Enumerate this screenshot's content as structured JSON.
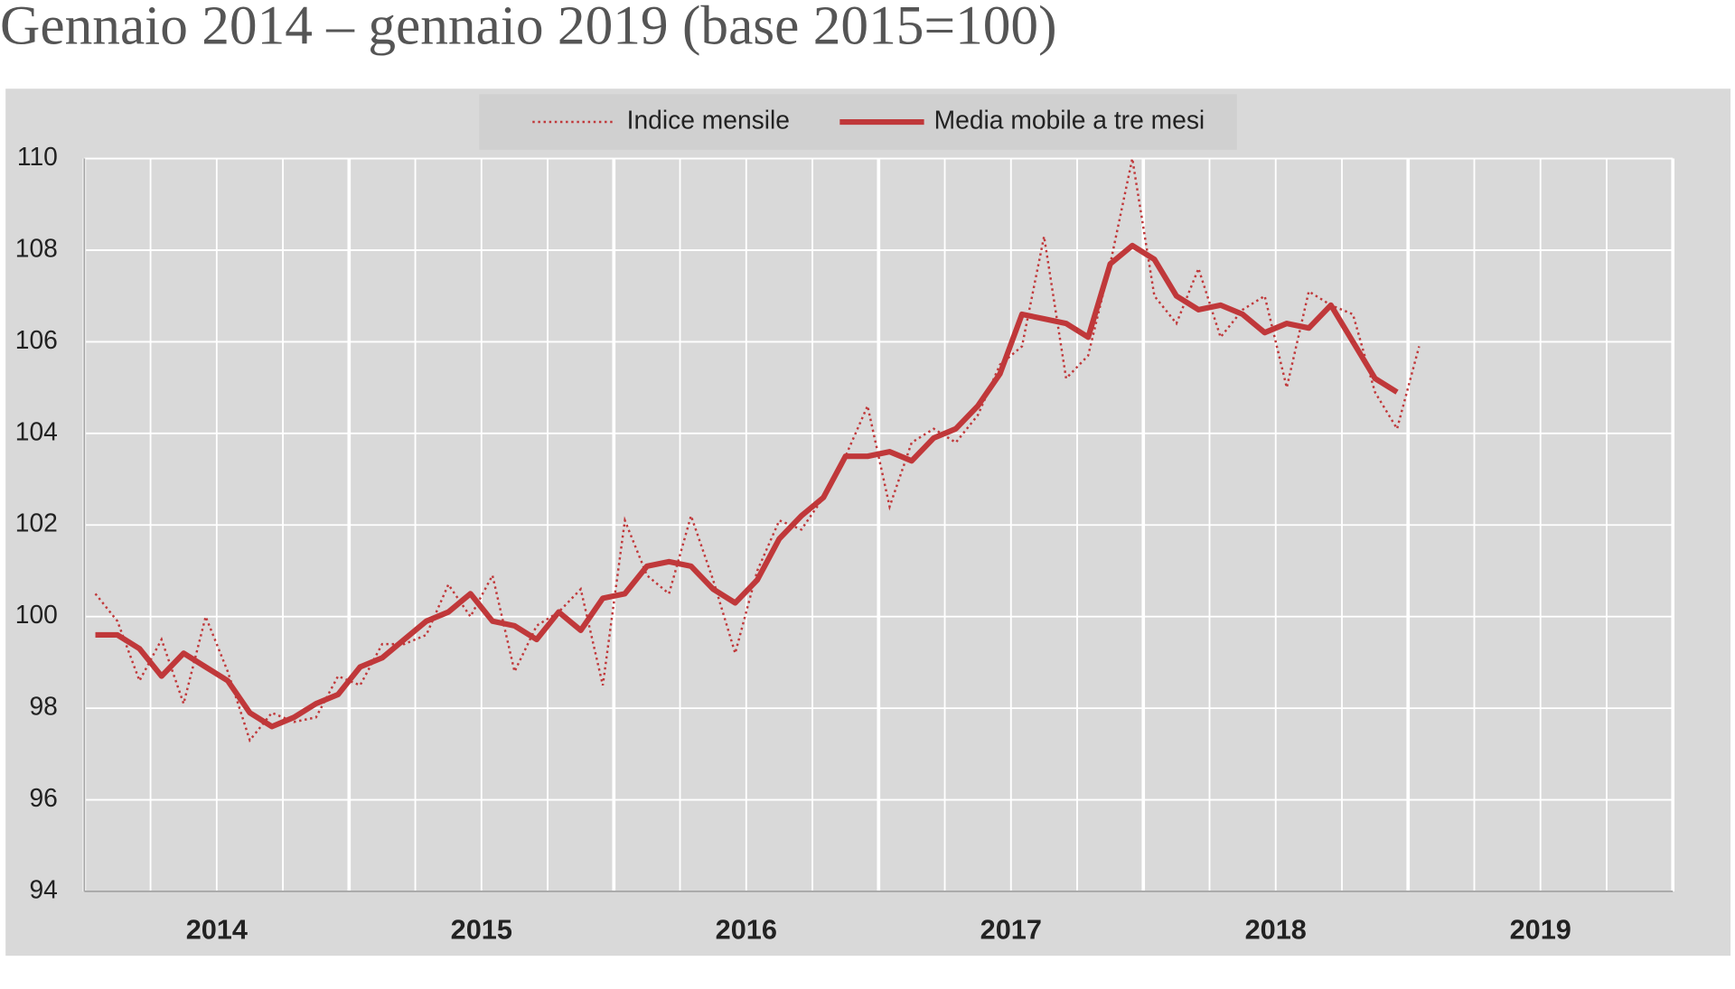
{
  "chart_data": {
    "type": "line",
    "title": "Gennaio 2014 – gennaio 2019 (base 2015=100)",
    "x": [
      0,
      1,
      2,
      3,
      4,
      5,
      6,
      7,
      8,
      9,
      10,
      11,
      12,
      13,
      14,
      15,
      16,
      17,
      18,
      19,
      20,
      21,
      22,
      23,
      24,
      25,
      26,
      27,
      28,
      29,
      30,
      31,
      32,
      33,
      34,
      35,
      36,
      37,
      38,
      39,
      40,
      41,
      42,
      43,
      44,
      45,
      46,
      47,
      48,
      49,
      50,
      51,
      52,
      53,
      54,
      55,
      56,
      57,
      58,
      59,
      60
    ],
    "series": [
      {
        "name": "Indice mensile",
        "color": "#c0383a",
        "line_style": "dotted",
        "values": [
          100.5,
          99.9,
          98.6,
          99.5,
          98.1,
          100.0,
          98.8,
          97.3,
          97.9,
          97.7,
          97.8,
          98.7,
          98.5,
          99.4,
          99.4,
          99.6,
          100.7,
          100.0,
          100.9,
          98.8,
          99.8,
          100.1,
          100.6,
          98.5,
          102.1,
          100.9,
          100.5,
          102.2,
          100.8,
          99.2,
          101.0,
          102.1,
          101.9,
          102.6,
          103.5,
          104.6,
          102.4,
          103.8,
          104.1,
          103.8,
          104.4,
          105.5,
          105.9,
          108.3,
          105.2,
          105.7,
          107.7,
          110.0,
          107.0,
          106.4,
          107.6,
          106.1,
          106.7,
          107.0,
          105.0,
          107.1,
          106.8,
          106.6,
          104.9,
          104.1,
          105.9
        ]
      },
      {
        "name": "Media mobile a tre mesi",
        "color": "#c0383a",
        "line_style": "solid",
        "values": [
          99.6,
          99.6,
          99.3,
          98.7,
          99.2,
          98.9,
          98.6,
          97.9,
          97.6,
          97.8,
          98.1,
          98.3,
          98.9,
          99.1,
          99.5,
          99.9,
          100.1,
          100.5,
          99.9,
          99.8,
          99.5,
          100.1,
          99.7,
          100.4,
          100.5,
          101.1,
          101.2,
          101.1,
          100.6,
          100.3,
          100.8,
          101.7,
          102.2,
          102.6,
          103.5,
          103.5,
          103.6,
          103.4,
          103.9,
          104.1,
          104.6,
          105.3,
          106.6,
          106.5,
          106.4,
          106.1,
          107.7,
          108.1,
          107.8,
          107.0,
          106.7,
          106.8,
          106.6,
          106.2,
          106.4,
          106.3,
          106.8,
          106.0,
          105.2,
          104.9,
          null
        ]
      }
    ],
    "xlim": [
      -0.5,
      71.5
    ],
    "xticks": [
      {
        "value": 5.5,
        "label": "2014"
      },
      {
        "value": 17.5,
        "label": "2015"
      },
      {
        "value": 29.5,
        "label": "2016"
      },
      {
        "value": 41.5,
        "label": "2017"
      },
      {
        "value": 53.5,
        "label": "2018"
      },
      {
        "value": 65.5,
        "label": "2019"
      }
    ],
    "ylim": [
      94,
      110
    ],
    "yticks": [
      94,
      96,
      98,
      100,
      102,
      104,
      106,
      108,
      110
    ],
    "grid": true,
    "legend": "top"
  }
}
